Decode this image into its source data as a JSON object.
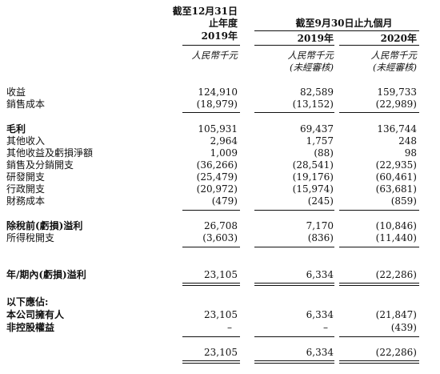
{
  "header": {
    "col1_line1": "截至12月31日",
    "col1_line2": "止年度",
    "col1_year": "2019年",
    "nine_month_title": "截至9月30日止九個月",
    "col2_year": "2019年",
    "col3_year": "2020年",
    "col1_unit": "人民幣千元",
    "col2_unit": "人民幣千元",
    "col2_unit_note": "(未經審核)",
    "col3_unit": "人民幣千元",
    "col3_unit_note": "(未經審核)"
  },
  "rows": [
    {
      "label": "收益",
      "v1": "124,910",
      "v2": "82,589",
      "v3": "159,733"
    },
    {
      "label": "銷售成本",
      "v1": "(18,979)",
      "v2": "(13,152)",
      "v3": "(22,989)"
    },
    {
      "label": "毛利",
      "v1": "105,931",
      "v2": "69,437",
      "v3": "136,744"
    },
    {
      "label": "其他收入",
      "v1": "2,964",
      "v2": "1,757",
      "v3": "248"
    },
    {
      "label": "其他收益及虧損淨額",
      "v1": "1,009",
      "v2": "(88)",
      "v3": "98"
    },
    {
      "label": "銷售及分銷開支",
      "v1": "(36,266)",
      "v2": "(28,541)",
      "v3": "(22,935)"
    },
    {
      "label": "研發開支",
      "v1": "(25,479)",
      "v2": "(19,176)",
      "v3": "(60,461)"
    },
    {
      "label": "行政開支",
      "v1": "(20,972)",
      "v2": "(15,974)",
      "v3": "(63,681)"
    },
    {
      "label": "財務成本",
      "v1": "(479)",
      "v2": "(245)",
      "v3": "(859)"
    },
    {
      "label": "除稅前(虧損)溢利",
      "v1": "26,708",
      "v2": "7,170",
      "v3": "(10,846)"
    },
    {
      "label": "所得稅開支",
      "v1": "(3,603)",
      "v2": "(836)",
      "v3": "(11,440)"
    },
    {
      "label": "年/期內(虧損)溢利",
      "v1": "23,105",
      "v2": "6,334",
      "v3": "(22,286)"
    },
    {
      "label": "以下應佔:"
    },
    {
      "label": "本公司擁有人",
      "v1": "23,105",
      "v2": "6,334",
      "v3": "(21,847)"
    },
    {
      "label": "非控股權益",
      "v1": "–",
      "v2": "–",
      "v3": "(439)"
    },
    {
      "v1": "23,105",
      "v2": "6,334",
      "v3": "(22,286)"
    }
  ]
}
